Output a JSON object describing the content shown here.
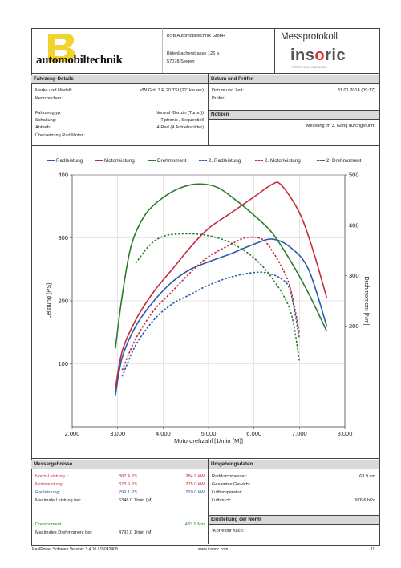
{
  "header": {
    "company_name": "BSB Automobiltechnik GmbH",
    "street": "Birlenbacherstrasse 126 a",
    "city": "57078 Siegen",
    "logo_text": "automobiltechnik",
    "title": "Messprotokoll",
    "brand_a": "ins",
    "brand_o": "o",
    "brand_b": "ric",
    "brand_sub": "POWER WITH KNOWHOW"
  },
  "vehicle": {
    "heading": "Fahrzeug-Details",
    "rows": [
      {
        "label": "Marke und Modell:",
        "value": "VW Golf 7 R 20 TSI (221kw ser)"
      },
      {
        "label": "Kennzeichen:",
        "value": ""
      },
      {
        "label": "Fahrzeugtyp:",
        "value": "Normal (Benzin (Turbo))"
      },
      {
        "label": "Schaltung:",
        "value": "Tiptronic / Sequentiell"
      },
      {
        "label": "Antrieb:",
        "value": "4-Rad (4 Antriebsräder)"
      },
      {
        "label": "Übersetzung Rad:Motor :",
        "value": ""
      }
    ]
  },
  "datetime": {
    "heading": "Datum und Prüfer",
    "date_label": "Datum und Zeit:",
    "date_value": "31.01.2014 (09:17)",
    "tester_label": "Prüfer:"
  },
  "notes": {
    "heading": "Notizen",
    "text": "Messung im 3. Gang durchgeführt."
  },
  "chart_data": {
    "type": "line",
    "xlabel": "Motordrehzahl [1/min (M)]",
    "ylabel": "Leistung [PS]",
    "y2label": "Drehmoment [Nm]",
    "xlim": [
      2000,
      8000
    ],
    "ylim": [
      0,
      400
    ],
    "y2lim": [
      0,
      500
    ],
    "xticks": [
      "2.000",
      "3.000",
      "4.000",
      "5.000",
      "6.000",
      "7.000",
      "8.000"
    ],
    "yticks": [
      "100",
      "200",
      "300",
      "400"
    ],
    "y2ticks": [
      "200",
      "300",
      "400",
      "500"
    ],
    "series": [
      {
        "name": "Radleistung",
        "color": "#2a5aa8",
        "dashed": false,
        "axis": "left",
        "points": [
          [
            2950,
            50
          ],
          [
            3100,
            110
          ],
          [
            3400,
            160
          ],
          [
            3800,
            200
          ],
          [
            4200,
            230
          ],
          [
            4600,
            250
          ],
          [
            5000,
            262
          ],
          [
            5500,
            275
          ],
          [
            6000,
            290
          ],
          [
            6400,
            298
          ],
          [
            6800,
            285
          ],
          [
            7200,
            250
          ],
          [
            7600,
            160
          ]
        ]
      },
      {
        "name": "Motorleistung",
        "color": "#c8283c",
        "dashed": false,
        "axis": "left",
        "points": [
          [
            2950,
            60
          ],
          [
            3100,
            120
          ],
          [
            3400,
            170
          ],
          [
            3800,
            215
          ],
          [
            4200,
            250
          ],
          [
            4600,
            285
          ],
          [
            5000,
            315
          ],
          [
            5500,
            340
          ],
          [
            6000,
            365
          ],
          [
            6400,
            385
          ],
          [
            6600,
            384
          ],
          [
            7000,
            340
          ],
          [
            7300,
            280
          ],
          [
            7600,
            205
          ]
        ]
      },
      {
        "name": "Drehmoment",
        "color": "#2a7a2a",
        "dashed": false,
        "axis": "right",
        "points": [
          [
            2950,
            155
          ],
          [
            3100,
            260
          ],
          [
            3300,
            360
          ],
          [
            3600,
            420
          ],
          [
            4000,
            455
          ],
          [
            4400,
            475
          ],
          [
            4800,
            482
          ],
          [
            5200,
            475
          ],
          [
            5600,
            450
          ],
          [
            6000,
            420
          ],
          [
            6400,
            385
          ],
          [
            6800,
            330
          ],
          [
            7200,
            265
          ],
          [
            7600,
            190
          ]
        ]
      },
      {
        "name": "2. Radleistung",
        "color": "#2a5aa8",
        "dashed": true,
        "axis": "left",
        "points": [
          [
            3100,
            80
          ],
          [
            3400,
            130
          ],
          [
            3800,
            170
          ],
          [
            4200,
            195
          ],
          [
            4600,
            210
          ],
          [
            5000,
            225
          ],
          [
            5500,
            238
          ],
          [
            6000,
            245
          ],
          [
            6300,
            244
          ],
          [
            6600,
            235
          ],
          [
            6800,
            215
          ],
          [
            7000,
            140
          ]
        ]
      },
      {
        "name": "2. Motorleistung",
        "color": "#c8283c",
        "dashed": true,
        "axis": "left",
        "points": [
          [
            3100,
            90
          ],
          [
            3400,
            140
          ],
          [
            3800,
            185
          ],
          [
            4200,
            215
          ],
          [
            4600,
            245
          ],
          [
            5000,
            270
          ],
          [
            5500,
            290
          ],
          [
            5800,
            300
          ],
          [
            6100,
            300
          ],
          [
            6300,
            290
          ],
          [
            6600,
            255
          ],
          [
            6800,
            220
          ],
          [
            7000,
            150
          ]
        ]
      },
      {
        "name": "2. Drehmoment",
        "color": "#2a7a2a",
        "dashed": true,
        "axis": "right",
        "points": [
          [
            3400,
            325
          ],
          [
            3700,
            360
          ],
          [
            4000,
            378
          ],
          [
            4400,
            383
          ],
          [
            4800,
            382
          ],
          [
            5200,
            375
          ],
          [
            5600,
            360
          ],
          [
            6000,
            335
          ],
          [
            6400,
            295
          ],
          [
            6800,
            230
          ],
          [
            7000,
            130
          ]
        ]
      }
    ]
  },
  "results": {
    "heading": "Messergebnisse",
    "rows": [
      {
        "label": "Norm-Leistung ¹:",
        "v1": "387.4 PS",
        "v2": "284.9 kW",
        "color": "#c8283c"
      },
      {
        "label": "Motorleistung:",
        "v1": "373.9 PS",
        "v2": "275.0 kW",
        "color": "#c8283c"
      },
      {
        "label": "Radleistung:",
        "v1": "299.1 PS",
        "v2": "220.0 kW",
        "color": "#2a5aa8"
      },
      {
        "label": "Maximale Leistung bei:",
        "v1": "6346.0 1/min (M)",
        "v2": "",
        "color": "#222"
      }
    ],
    "torque_label": "Drehmoment",
    "torque_value": "483.9 Nm",
    "torque_at_label": "Maximales Drehmoment bei:",
    "torque_at_value": "4791.0 1/min (M)"
  },
  "environment": {
    "heading": "Umgebungsdaten",
    "rows": [
      {
        "label": "Raddurchmesser:",
        "value": "63.9 cm"
      },
      {
        "label": "Gesamtes Gewicht:",
        "value": ""
      },
      {
        "label": "Lufttemperatur:",
        "value": ""
      },
      {
        "label": "Luftdruck:",
        "value": "976.6 hPa"
      }
    ]
  },
  "norm": {
    "heading": "Einstellung der Norm",
    "text": "¹Korrektur nach:"
  },
  "footer": {
    "software": "RealPower Software Version: 3.4.10 / 15042408",
    "url": "www.insoric.com",
    "page": "1/1"
  }
}
